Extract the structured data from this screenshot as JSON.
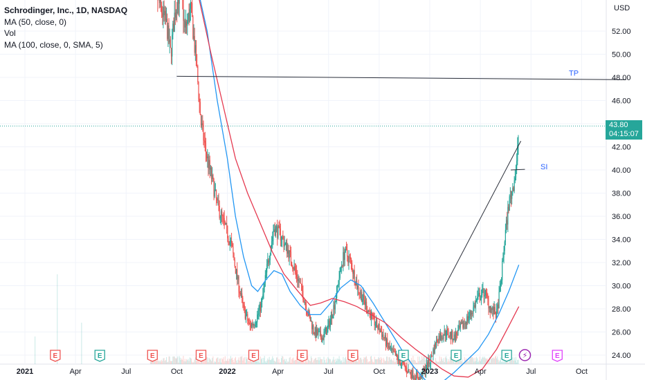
{
  "chart_data": {
    "type": "candlestick",
    "title": "Schrodinger, Inc., 1D, NASDAQ",
    "indicators": [
      "MA (50, close, 0)",
      "Vol",
      "MA (100, close, 0, SMA, 5)"
    ],
    "currency": "USD",
    "last_price": "43.80",
    "countdown": "04:15:07",
    "y_ticks": [
      "52.00",
      "50.00",
      "48.00",
      "46.00",
      "44.00",
      "42.00",
      "40.00",
      "38.00",
      "36.00",
      "34.00",
      "32.00",
      "30.00",
      "28.00",
      "26.00",
      "24.00"
    ],
    "x_ticks": [
      {
        "label": "2021",
        "major": true
      },
      {
        "label": "Apr",
        "major": false
      },
      {
        "label": "Jul",
        "major": false
      },
      {
        "label": "Oct",
        "major": false
      },
      {
        "label": "2022",
        "major": true
      },
      {
        "label": "Apr",
        "major": false
      },
      {
        "label": "Jul",
        "major": false
      },
      {
        "label": "Oct",
        "major": false
      },
      {
        "label": "2023",
        "major": true
      },
      {
        "label": "Apr",
        "major": false
      },
      {
        "label": "Jul",
        "major": false
      },
      {
        "label": "Oct",
        "major": false
      }
    ],
    "ylim": [
      23.2,
      54.6
    ],
    "price_path": [
      [
        2021.62,
        58.0
      ],
      [
        2021.66,
        54.5
      ],
      [
        2021.7,
        52.5
      ],
      [
        2021.72,
        50.0
      ],
      [
        2021.74,
        53.5
      ],
      [
        2021.77,
        56.0
      ],
      [
        2021.79,
        52.0
      ],
      [
        2021.82,
        54.0
      ],
      [
        2021.85,
        48.5
      ],
      [
        2021.87,
        44.0
      ],
      [
        2021.9,
        41.0
      ],
      [
        2021.92,
        39.5
      ],
      [
        2021.95,
        37.0
      ],
      [
        2021.98,
        35.5
      ],
      [
        2022.02,
        33.5
      ],
      [
        2022.05,
        30.5
      ],
      [
        2022.08,
        28.0
      ],
      [
        2022.11,
        26.5
      ],
      [
        2022.14,
        27.0
      ],
      [
        2022.17,
        28.5
      ],
      [
        2022.2,
        32.0
      ],
      [
        2022.23,
        35.0
      ],
      [
        2022.26,
        34.5
      ],
      [
        2022.3,
        33.0
      ],
      [
        2022.33,
        31.5
      ],
      [
        2022.37,
        29.5
      ],
      [
        2022.4,
        27.5
      ],
      [
        2022.43,
        26.0
      ],
      [
        2022.47,
        25.5
      ],
      [
        2022.5,
        26.5
      ],
      [
        2022.53,
        28.5
      ],
      [
        2022.56,
        31.5
      ],
      [
        2022.58,
        33.0
      ],
      [
        2022.61,
        32.0
      ],
      [
        2022.64,
        30.0
      ],
      [
        2022.68,
        28.5
      ],
      [
        2022.72,
        27.0
      ],
      [
        2022.76,
        26.0
      ],
      [
        2022.8,
        24.5
      ],
      [
        2022.85,
        23.5
      ],
      [
        2022.9,
        22.5
      ],
      [
        2022.95,
        22.0
      ],
      [
        2023.0,
        23.5
      ],
      [
        2023.04,
        25.5
      ],
      [
        2023.08,
        26.0
      ],
      [
        2023.12,
        25.5
      ],
      [
        2023.16,
        26.5
      ],
      [
        2023.2,
        27.5
      ],
      [
        2023.24,
        29.0
      ],
      [
        2023.27,
        29.5
      ],
      [
        2023.3,
        28.0
      ],
      [
        2023.33,
        27.5
      ],
      [
        2023.35,
        30.0
      ],
      [
        2023.37,
        34.0
      ],
      [
        2023.39,
        37.0
      ],
      [
        2023.41,
        38.5
      ],
      [
        2023.43,
        40.5
      ],
      [
        2023.44,
        43.8
      ]
    ],
    "ma50": [
      [
        2021.85,
        56.0
      ],
      [
        2021.9,
        52.0
      ],
      [
        2021.95,
        46.0
      ],
      [
        2022.0,
        41.0
      ],
      [
        2022.04,
        36.0
      ],
      [
        2022.08,
        32.5
      ],
      [
        2022.12,
        30.0
      ],
      [
        2022.15,
        29.5
      ],
      [
        2022.19,
        30.5
      ],
      [
        2022.23,
        31.3
      ],
      [
        2022.27,
        31.0
      ],
      [
        2022.31,
        29.5
      ],
      [
        2022.36,
        28.3
      ],
      [
        2022.41,
        27.5
      ],
      [
        2022.46,
        27.5
      ],
      [
        2022.51,
        28.5
      ],
      [
        2022.56,
        29.8
      ],
      [
        2022.61,
        30.5
      ],
      [
        2022.66,
        30.0
      ],
      [
        2022.72,
        28.5
      ],
      [
        2022.79,
        26.5
      ],
      [
        2022.86,
        24.5
      ],
      [
        2022.92,
        23.0
      ],
      [
        2022.98,
        21.8
      ],
      [
        2023.05,
        21.5
      ],
      [
        2023.12,
        22.5
      ],
      [
        2023.18,
        23.5
      ],
      [
        2023.24,
        24.5
      ],
      [
        2023.29,
        25.8
      ],
      [
        2023.34,
        27.5
      ],
      [
        2023.39,
        29.5
      ],
      [
        2023.44,
        31.8
      ]
    ],
    "ma100": [
      [
        2021.82,
        58.0
      ],
      [
        2021.87,
        54.0
      ],
      [
        2021.92,
        50.0
      ],
      [
        2021.98,
        45.5
      ],
      [
        2022.04,
        41.0
      ],
      [
        2022.1,
        38.0
      ],
      [
        2022.16,
        35.5
      ],
      [
        2022.22,
        33.0
      ],
      [
        2022.28,
        31.0
      ],
      [
        2022.35,
        29.5
      ],
      [
        2022.41,
        28.3
      ],
      [
        2022.46,
        28.5
      ],
      [
        2022.52,
        28.9
      ],
      [
        2022.58,
        28.6
      ],
      [
        2022.64,
        28.2
      ],
      [
        2022.7,
        27.6
      ],
      [
        2022.78,
        26.8
      ],
      [
        2022.86,
        25.5
      ],
      [
        2022.93,
        24.5
      ],
      [
        2023.0,
        23.6
      ],
      [
        2023.06,
        22.8
      ],
      [
        2023.12,
        22.2
      ],
      [
        2023.19,
        22.1
      ],
      [
        2023.26,
        22.8
      ],
      [
        2023.33,
        24.5
      ],
      [
        2023.39,
        26.5
      ],
      [
        2023.44,
        28.2
      ]
    ],
    "annotations": [
      {
        "label": "TP",
        "x1": 2021.75,
        "y1": 48.1,
        "x2": 2023.97,
        "y2": 47.8
      },
      {
        "label": "SI",
        "x1": 2023.4,
        "y1": 40.0,
        "x2": 2023.47,
        "y2": 40.05
      },
      {
        "label": "",
        "x1": 2023.01,
        "y1": 27.8,
        "x2": 2023.45,
        "y2": 42.5
      }
    ],
    "events": [
      {
        "label": "E",
        "x": 2021.15,
        "kind": "earnings-red"
      },
      {
        "label": "E",
        "x": 2021.37,
        "kind": "earnings-green"
      },
      {
        "label": "E",
        "x": 2021.63,
        "kind": "earnings-red"
      },
      {
        "label": "E",
        "x": 2021.87,
        "kind": "earnings-red"
      },
      {
        "label": "E",
        "x": 2022.13,
        "kind": "earnings-red"
      },
      {
        "label": "E",
        "x": 2022.37,
        "kind": "earnings-red"
      },
      {
        "label": "E",
        "x": 2022.62,
        "kind": "earnings-red"
      },
      {
        "label": "E",
        "x": 2022.87,
        "kind": "earnings-green"
      },
      {
        "label": "E",
        "x": 2023.13,
        "kind": "earnings-green"
      },
      {
        "label": "E",
        "x": 2023.38,
        "kind": "earnings-green"
      },
      {
        "label": "⚡",
        "x": 2023.47,
        "kind": "dividend"
      },
      {
        "label": "E",
        "x": 2023.63,
        "kind": "earnings-future"
      }
    ],
    "colors": {
      "up": "#26a69a",
      "down": "#ef5350",
      "ma50": "#2196f3",
      "ma100": "#e53950",
      "annotation": "#2962ff",
      "grid": "#f0f3fa",
      "priceline": "#26a69a"
    }
  }
}
